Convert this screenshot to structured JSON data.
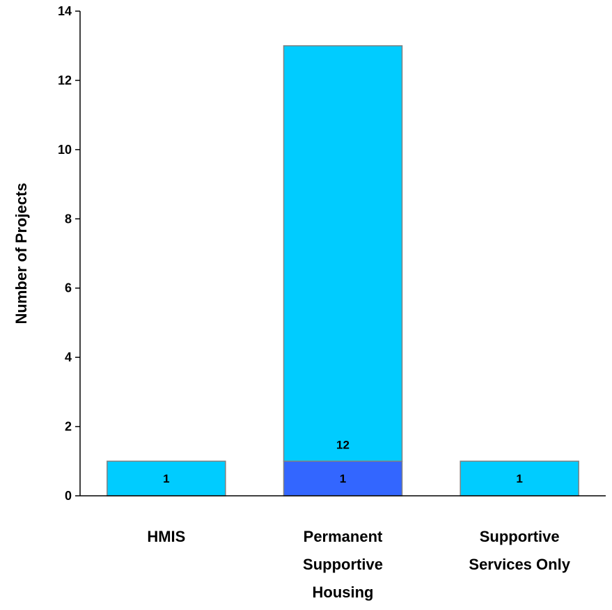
{
  "chart_data": {
    "type": "bar",
    "stacked": true,
    "categories": [
      "HMIS",
      "Permanent Supportive Housing",
      "Supportive Services Only"
    ],
    "category_label_lines": [
      [
        "HMIS"
      ],
      [
        "Permanent",
        "Supportive",
        "Housing"
      ],
      [
        "Supportive",
        "Services Only"
      ]
    ],
    "series": [
      {
        "color": "#3366ff",
        "values": [
          0,
          1,
          0
        ]
      },
      {
        "color": "#00ccff",
        "values": [
          1,
          12,
          1
        ]
      }
    ],
    "data_labels": [
      {
        "category": 0,
        "value": 1,
        "text": "1"
      },
      {
        "category": 1,
        "value": 1,
        "text": "1"
      },
      {
        "category": 1,
        "value": 12,
        "text": "12"
      },
      {
        "category": 2,
        "value": 1,
        "text": "1"
      }
    ],
    "title": "",
    "xlabel": "",
    "ylabel": "Number of Projects",
    "ylim": [
      0,
      14
    ],
    "yticks": [
      0,
      2,
      4,
      6,
      8,
      10,
      12,
      14
    ],
    "grid": false,
    "legend": "none"
  }
}
